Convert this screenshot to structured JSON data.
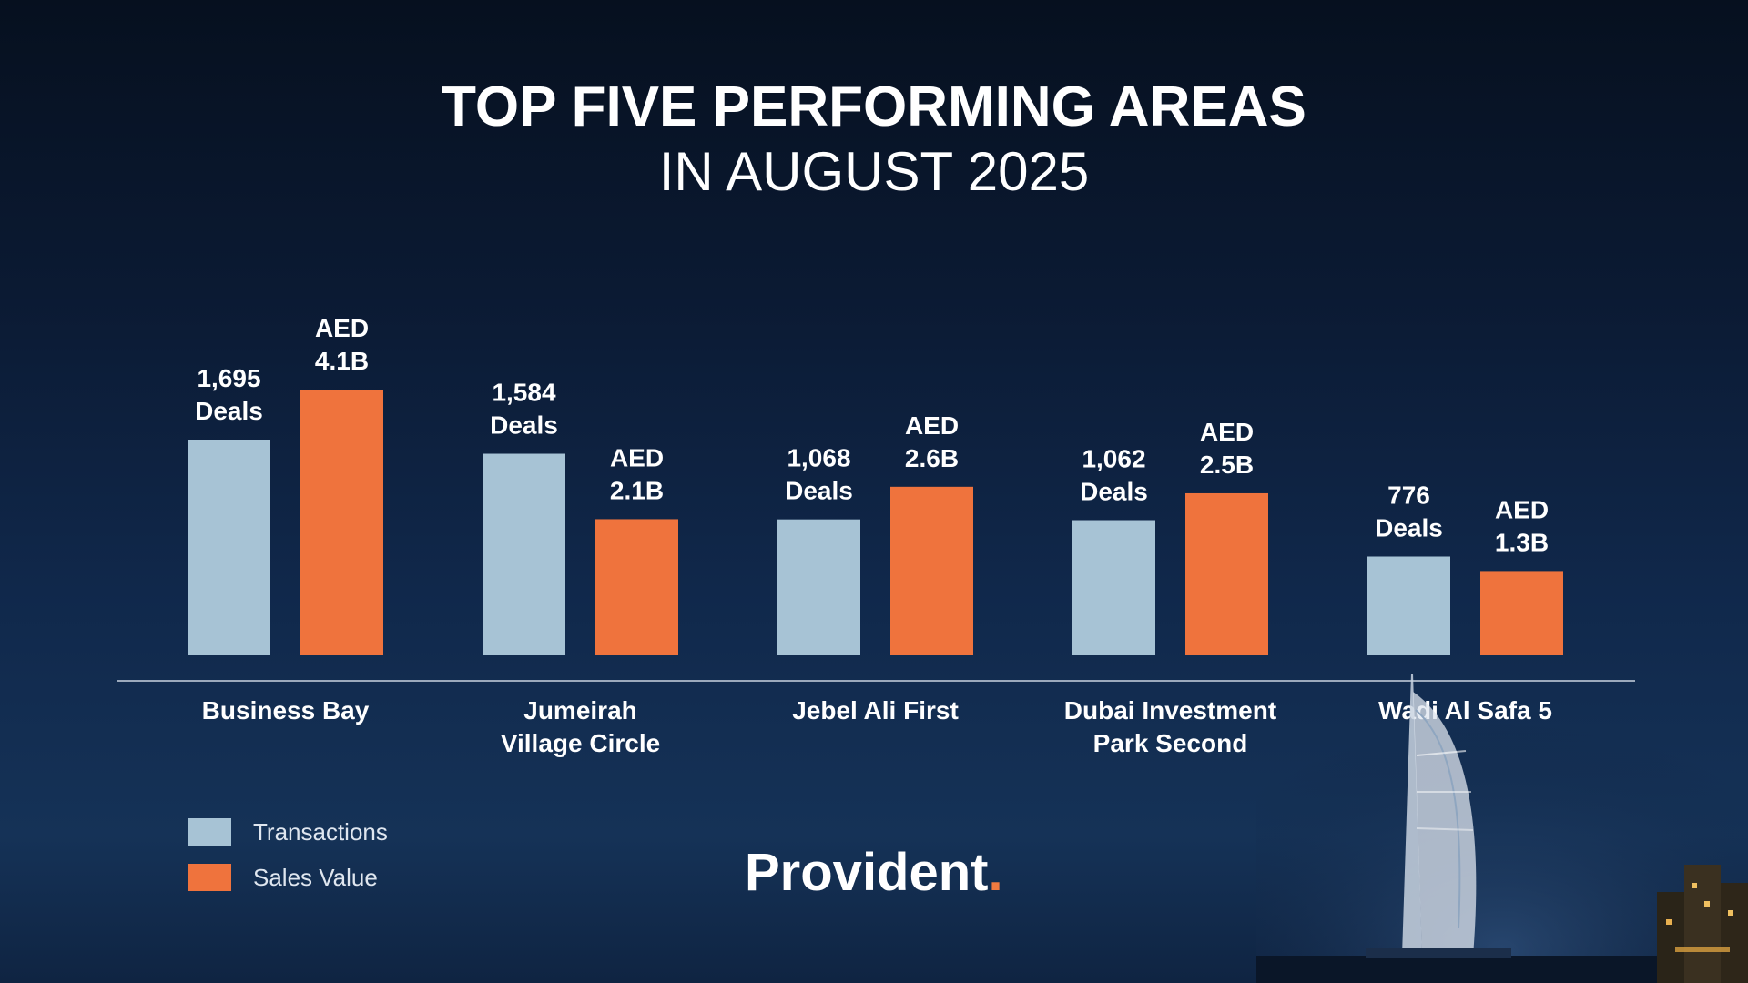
{
  "title": {
    "line1": "TOP FIVE PERFORMING AREAS",
    "line2": "IN AUGUST 2025"
  },
  "colors": {
    "transactions": "#a7c3d5",
    "sales_value": "#ef733d",
    "background": "#0b1a33",
    "brand_accent": "#f07a40"
  },
  "chart_data": {
    "type": "bar",
    "categories": [
      [
        "Business Bay"
      ],
      [
        "Jumeirah",
        "Village Circle"
      ],
      [
        "Jebel Ali First"
      ],
      [
        "Dubai Investment",
        "Park Second"
      ],
      [
        "Wadi Al Safa 5"
      ]
    ],
    "series": [
      {
        "name": "Transactions",
        "values": [
          1695,
          1584,
          1068,
          1062,
          776
        ],
        "labels": [
          [
            "1,695",
            "Deals"
          ],
          [
            "1,584",
            "Deals"
          ],
          [
            "1,068",
            "Deals"
          ],
          [
            "1,062",
            "Deals"
          ],
          [
            "776",
            "Deals"
          ]
        ]
      },
      {
        "name": "Sales Value",
        "values": [
          4.1,
          2.1,
          2.6,
          2.5,
          1.3
        ],
        "labels": [
          [
            "AED",
            "4.1B"
          ],
          [
            "AED",
            "2.1B"
          ],
          [
            "AED",
            "2.6B"
          ],
          [
            "AED",
            "2.5B"
          ],
          [
            "AED",
            "1.3B"
          ]
        ]
      }
    ],
    "legend": "bottom-left",
    "grid": false
  },
  "legend": {
    "transactions_label": "Transactions",
    "sales_value_label": "Sales Value"
  },
  "brand": {
    "name": "Provident",
    "dot": "."
  }
}
